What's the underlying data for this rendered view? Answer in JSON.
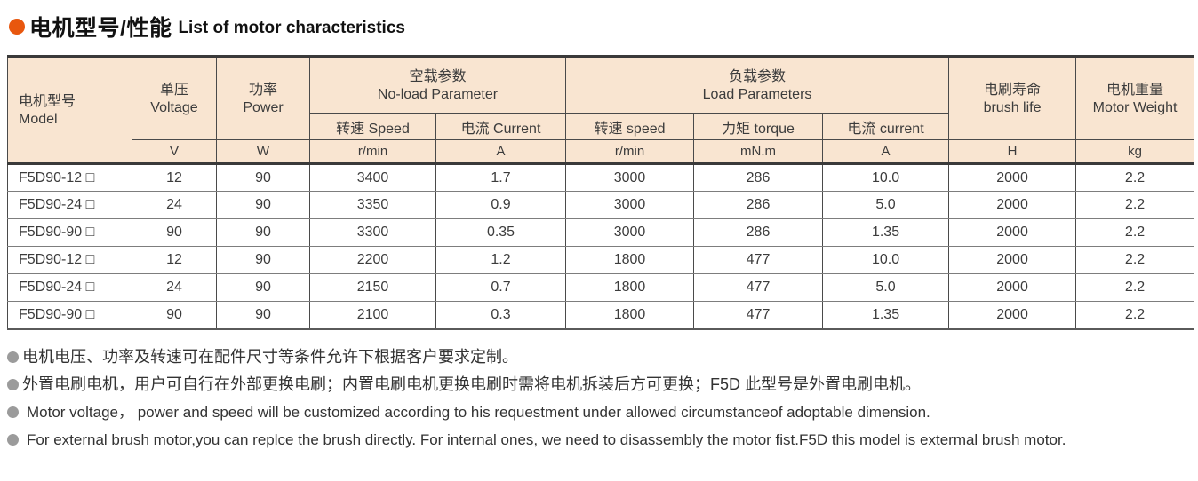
{
  "title": {
    "zh": "电机型号/性能",
    "en": "List of motor characteristics"
  },
  "colors": {
    "accent_bullet": "#e8570e",
    "header_background": "#f9e5d1",
    "note_bullet": "#9b9b9b"
  },
  "table": {
    "header": {
      "model": {
        "zh": "电机型号",
        "en": "Model"
      },
      "voltage": {
        "zh": "单压",
        "en": "Voltage"
      },
      "power": {
        "zh": "功率",
        "en": "Power"
      },
      "noload": {
        "zh": "空载参数",
        "en": "No-load Parameter"
      },
      "noload_speed": "转速 Speed",
      "noload_current": "电流 Current",
      "load": {
        "zh": "负载参数",
        "en": "Load Parameters"
      },
      "load_speed": "转速 speed",
      "load_torque": "力矩 torque",
      "load_current": "电流 current",
      "brush": {
        "zh": "电刷寿命",
        "en": "brush life"
      },
      "weight": {
        "zh": "电机重量",
        "en": "Motor Weight"
      }
    },
    "units": [
      "V",
      "W",
      "r/min",
      "A",
      "r/min",
      "mN.m",
      "A",
      "H",
      "kg"
    ],
    "rows": [
      [
        "F5D90-12 □",
        "12",
        "90",
        "3400",
        "1.7",
        "3000",
        "286",
        "10.0",
        "2000",
        "2.2"
      ],
      [
        "F5D90-24 □",
        "24",
        "90",
        "3350",
        "0.9",
        "3000",
        "286",
        "5.0",
        "2000",
        "2.2"
      ],
      [
        "F5D90-90 □",
        "90",
        "90",
        "3300",
        "0.35",
        "3000",
        "286",
        "1.35",
        "2000",
        "2.2"
      ],
      [
        "F5D90-12 □",
        "12",
        "90",
        "2200",
        "1.2",
        "1800",
        "477",
        "10.0",
        "2000",
        "2.2"
      ],
      [
        "F5D90-24 □",
        "24",
        "90",
        "2150",
        "0.7",
        "1800",
        "477",
        "5.0",
        "2000",
        "2.2"
      ],
      [
        "F5D90-90 □",
        "90",
        "90",
        "2100",
        "0.3",
        "1800",
        "477",
        "1.35",
        "2000",
        "2.2"
      ]
    ]
  },
  "notes": [
    "电机电压、功率及转速可在配件尺寸等条件允许下根据客户要求定制。",
    "外置电刷电机，用户可自行在外部更换电刷；内置电刷电机更换电刷时需将电机拆装后方可更换；F5D 此型号是外置电刷电机。",
    "Motor voltage， power and speed will be customized according to his requestment under allowed circumstanceof adoptable dimension.",
    "For external brush motor,you can replce the brush directly. For internal ones, we need to disassembly the motor fist.F5D this model is extermal brush motor."
  ]
}
